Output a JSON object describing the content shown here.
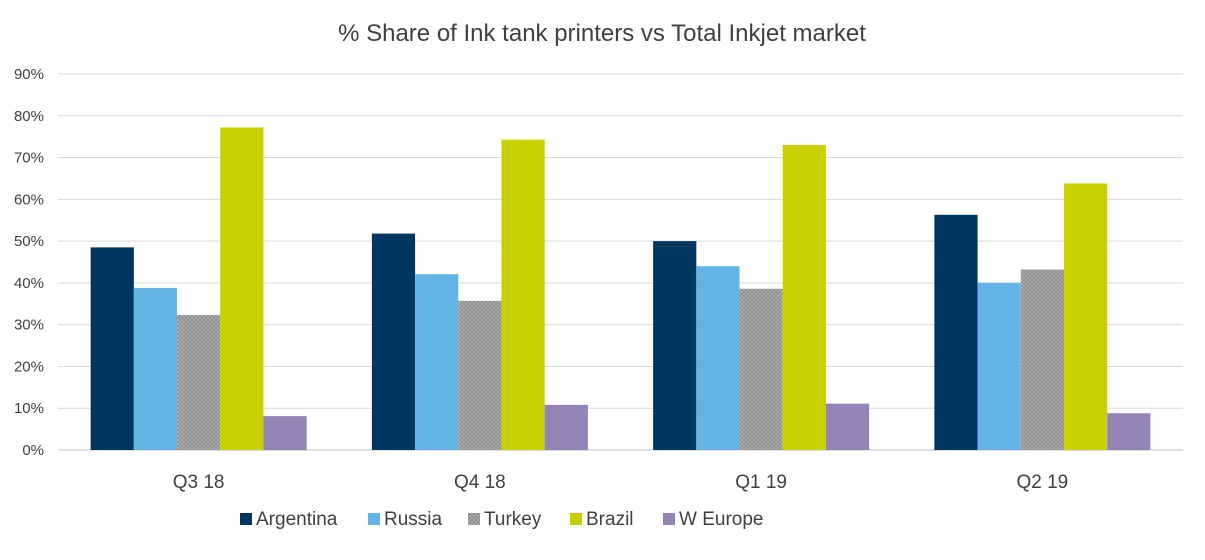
{
  "chart_data": {
    "type": "bar",
    "title": "% Share of Ink tank printers vs Total Inkjet market",
    "xlabel": "",
    "ylabel": "",
    "categories": [
      "Q3 18",
      "Q4 18",
      "Q1 19",
      "Q2 19"
    ],
    "yticks": [
      "0%",
      "10%",
      "20%",
      "30%",
      "40%",
      "50%",
      "60%",
      "70%",
      "80%",
      "90%"
    ],
    "ylim": [
      0,
      90
    ],
    "grid": true,
    "legend_position": "bottom",
    "series": [
      {
        "name": "Argentina",
        "color": "#003660",
        "pattern": "solid",
        "values": [
          48.5,
          51.8,
          50.0,
          56.3
        ]
      },
      {
        "name": "Russia",
        "color": "#64b5e6",
        "pattern": "solid",
        "values": [
          38.8,
          42.1,
          44.0,
          40.0
        ]
      },
      {
        "name": "Turkey",
        "color": "#a6a6a6",
        "pattern": "crosshatch",
        "values": [
          32.3,
          35.7,
          38.6,
          43.2
        ]
      },
      {
        "name": "Brazil",
        "color": "#c8d000",
        "pattern": "solid",
        "values": [
          77.2,
          74.3,
          73.0,
          63.8
        ]
      },
      {
        "name": "W Europe",
        "color": "#9383b6",
        "pattern": "solid",
        "values": [
          8.1,
          10.8,
          11.1,
          8.8
        ]
      }
    ]
  }
}
